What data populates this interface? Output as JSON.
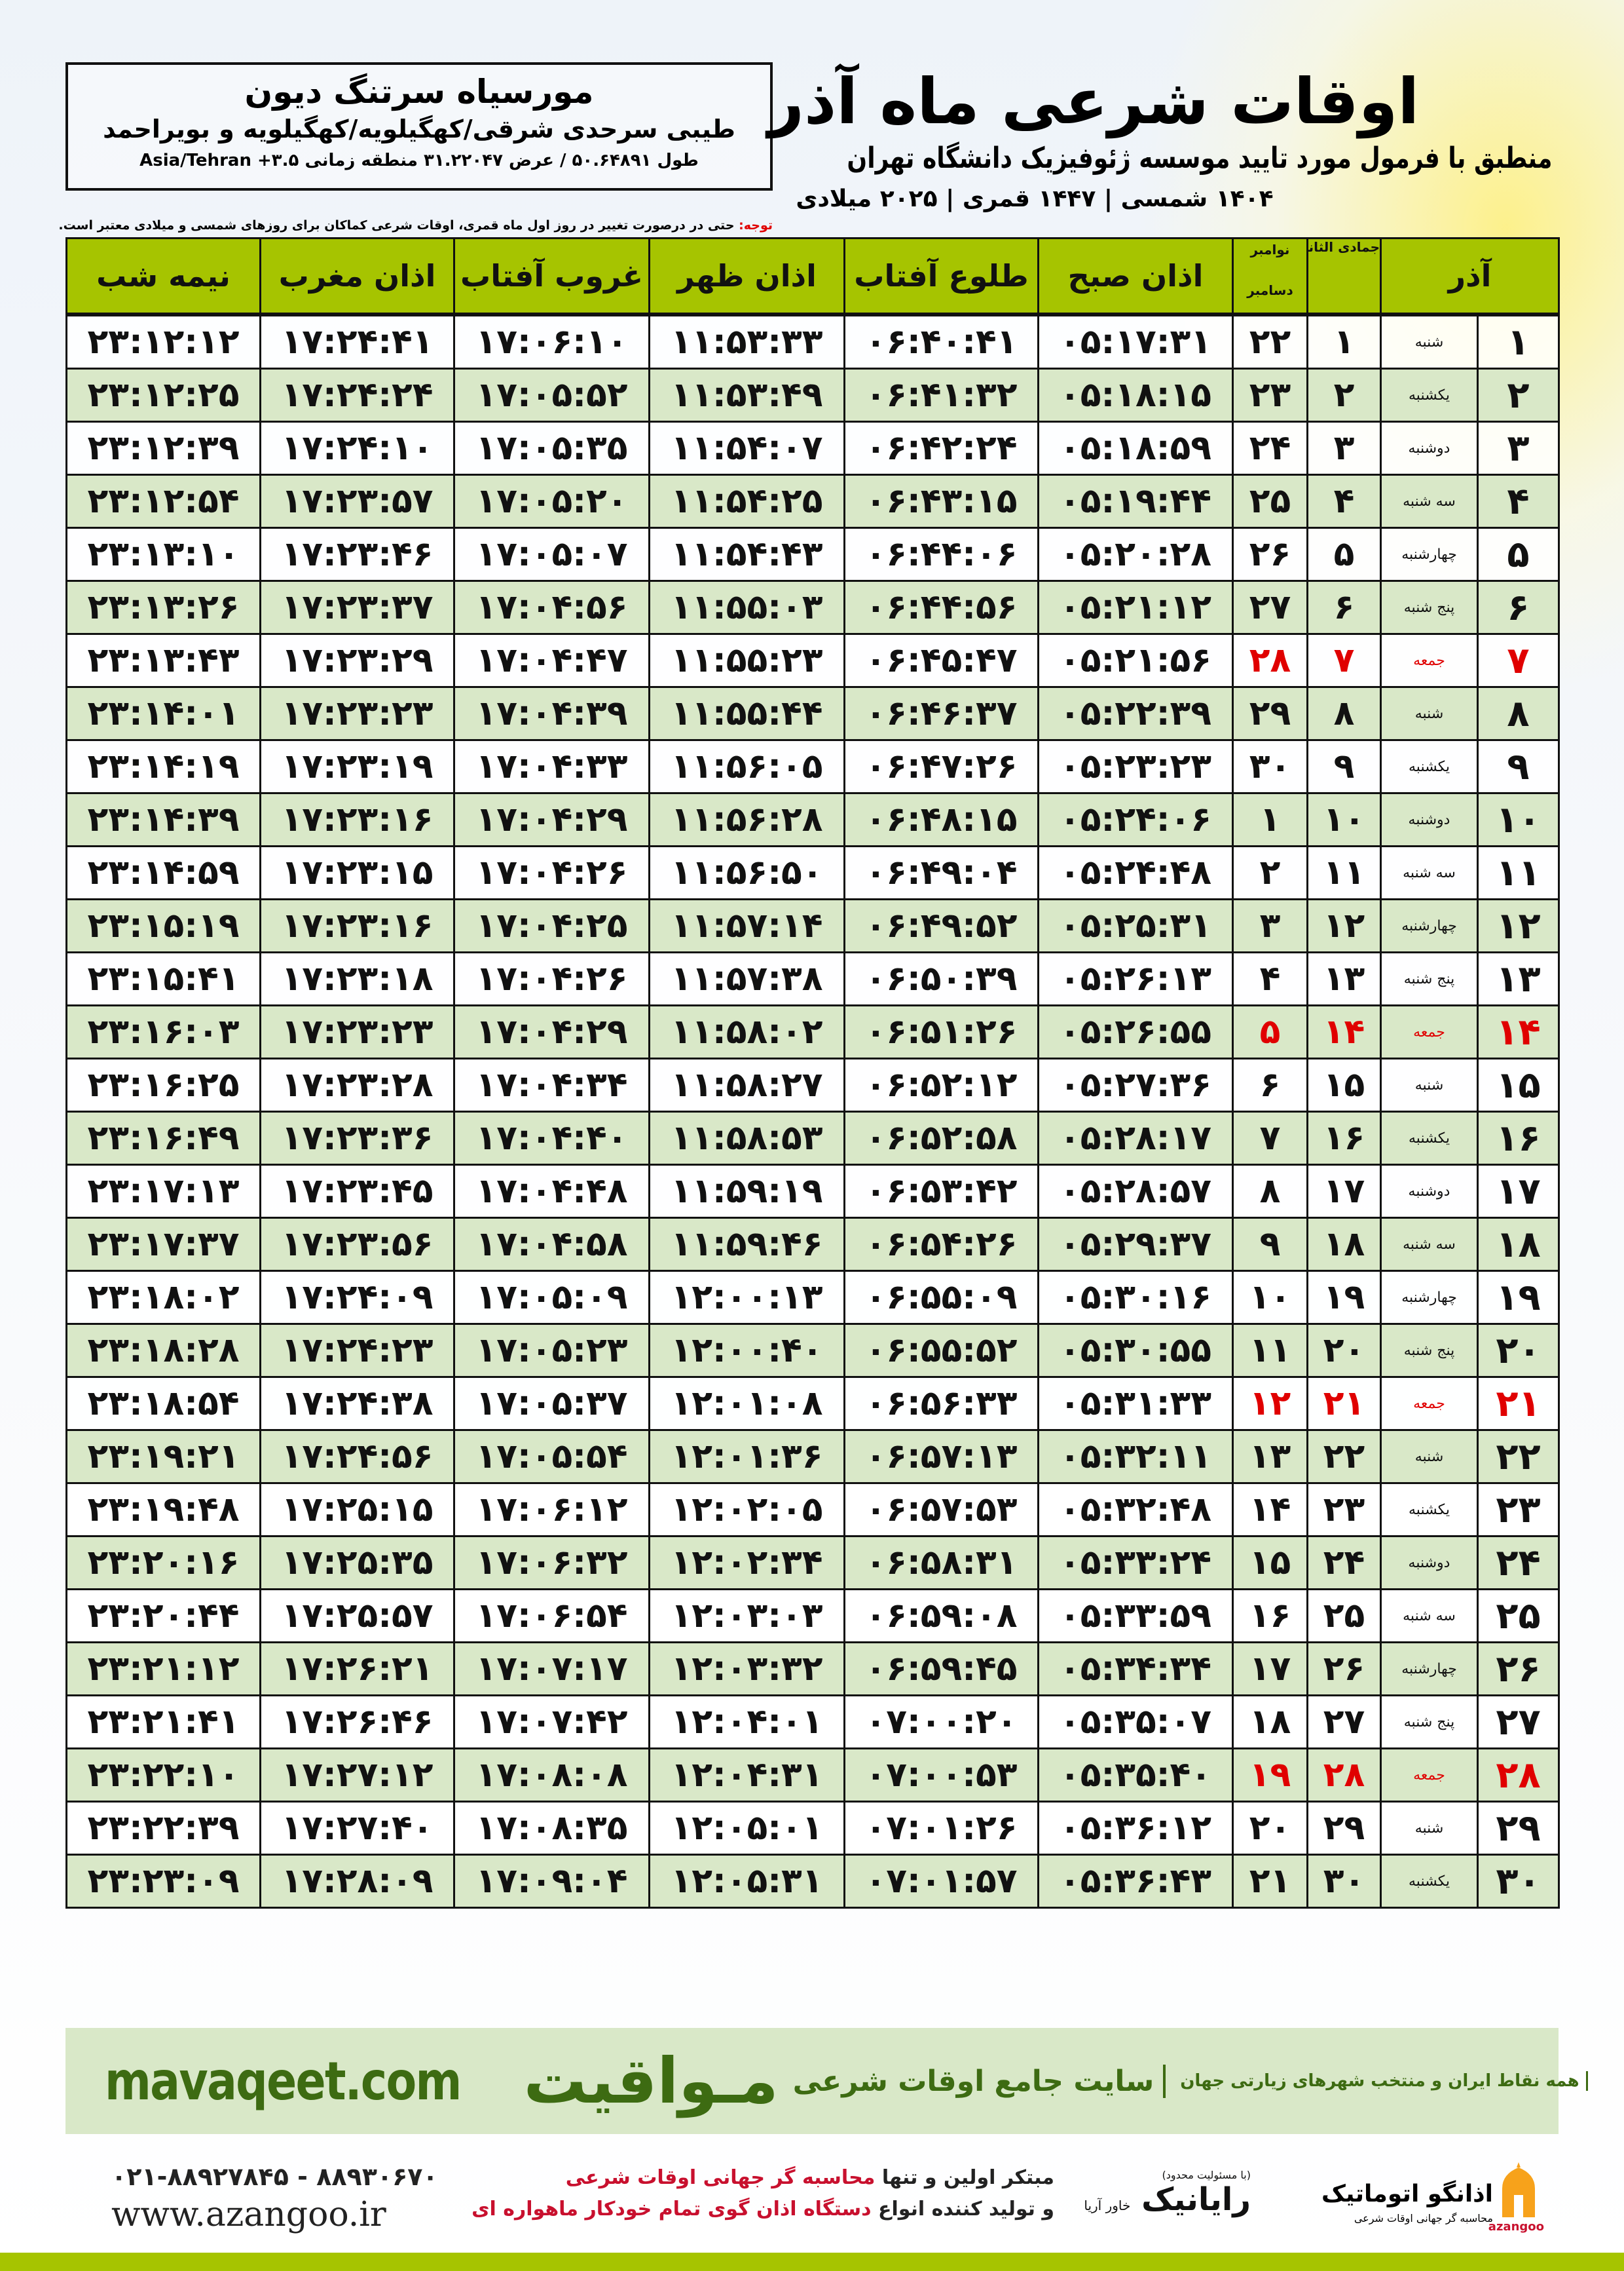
{
  "header": {
    "title": "اوقات شرعی ماه آذر",
    "subtitle": "منطبق با فرمول مورد تایید موسسه ژئوفیزیک دانشگاه تهران",
    "dateline": "۱۴۰۴ شمسی | ۱۴۴۷ قمری | ۲۰۲۵ میلادی"
  },
  "location": {
    "name": "مورسیاه سرتنگ دیون",
    "region": "طیبی سرحدی شرقی/کهگیلویه/کهگیلویه و بویراحمد",
    "coords": "طول ۵۰.۶۴۸۹۱ / عرض ۳۱.۲۲۰۴۷ منطقه زمانی Asia/Tehran +۳.۵"
  },
  "note": {
    "label": "توجه:",
    "text": " حتی در درصورت تغییر در روز اول ماه قمری، اوقات شرعی کماکان برای روزهای شمسی و میلادی معتبر است."
  },
  "table": {
    "headers": {
      "day": "آذر",
      "hijri": "جمادی الثانی",
      "greg_top": "نوامبر",
      "greg_bottom": "دسامبر",
      "fajr": "اذان صبح",
      "sunrise": "طلوع آفتاب",
      "dhuhr": "اذان ظهر",
      "sunset": "غروب آفتاب",
      "maghrib": "اذان مغرب",
      "midnight": "نیمه شب"
    },
    "holiday_color": "#e00000",
    "header_color": "#a6c400",
    "alt_row_color": "#d9e8c8",
    "rows": [
      {
        "day": "۱",
        "weekday": "شنبه",
        "hijri": "۱",
        "greg": "۲۲",
        "fajr": "۰۵:۱۷:۳۱",
        "sunrise": "۰۶:۴۰:۴۱",
        "dhuhr": "۱۱:۵۳:۳۳",
        "sunset": "۱۷:۰۶:۱۰",
        "maghrib": "۱۷:۲۴:۴۱",
        "midnight": "۲۳:۱۲:۱۲",
        "holiday": false
      },
      {
        "day": "۲",
        "weekday": "یکشنبه",
        "hijri": "۲",
        "greg": "۲۳",
        "fajr": "۰۵:۱۸:۱۵",
        "sunrise": "۰۶:۴۱:۳۲",
        "dhuhr": "۱۱:۵۳:۴۹",
        "sunset": "۱۷:۰۵:۵۲",
        "maghrib": "۱۷:۲۴:۲۴",
        "midnight": "۲۳:۱۲:۲۵",
        "holiday": false
      },
      {
        "day": "۳",
        "weekday": "دوشنبه",
        "hijri": "۳",
        "greg": "۲۴",
        "fajr": "۰۵:۱۸:۵۹",
        "sunrise": "۰۶:۴۲:۲۴",
        "dhuhr": "۱۱:۵۴:۰۷",
        "sunset": "۱۷:۰۵:۳۵",
        "maghrib": "۱۷:۲۴:۱۰",
        "midnight": "۲۳:۱۲:۳۹",
        "holiday": false
      },
      {
        "day": "۴",
        "weekday": "سه شنبه",
        "hijri": "۴",
        "greg": "۲۵",
        "fajr": "۰۵:۱۹:۴۴",
        "sunrise": "۰۶:۴۳:۱۵",
        "dhuhr": "۱۱:۵۴:۲۵",
        "sunset": "۱۷:۰۵:۲۰",
        "maghrib": "۱۷:۲۳:۵۷",
        "midnight": "۲۳:۱۲:۵۴",
        "holiday": false
      },
      {
        "day": "۵",
        "weekday": "چهارشنبه",
        "hijri": "۵",
        "greg": "۲۶",
        "fajr": "۰۵:۲۰:۲۸",
        "sunrise": "۰۶:۴۴:۰۶",
        "dhuhr": "۱۱:۵۴:۴۳",
        "sunset": "۱۷:۰۵:۰۷",
        "maghrib": "۱۷:۲۳:۴۶",
        "midnight": "۲۳:۱۳:۱۰",
        "holiday": false
      },
      {
        "day": "۶",
        "weekday": "پنج شنبه",
        "hijri": "۶",
        "greg": "۲۷",
        "fajr": "۰۵:۲۱:۱۲",
        "sunrise": "۰۶:۴۴:۵۶",
        "dhuhr": "۱۱:۵۵:۰۳",
        "sunset": "۱۷:۰۴:۵۶",
        "maghrib": "۱۷:۲۳:۳۷",
        "midnight": "۲۳:۱۳:۲۶",
        "holiday": false
      },
      {
        "day": "۷",
        "weekday": "جمعه",
        "hijri": "۷",
        "greg": "۲۸",
        "fajr": "۰۵:۲۱:۵۶",
        "sunrise": "۰۶:۴۵:۴۷",
        "dhuhr": "۱۱:۵۵:۲۳",
        "sunset": "۱۷:۰۴:۴۷",
        "maghrib": "۱۷:۲۳:۲۹",
        "midnight": "۲۳:۱۳:۴۳",
        "holiday": true
      },
      {
        "day": "۸",
        "weekday": "شنبه",
        "hijri": "۸",
        "greg": "۲۹",
        "fajr": "۰۵:۲۲:۳۹",
        "sunrise": "۰۶:۴۶:۳۷",
        "dhuhr": "۱۱:۵۵:۴۴",
        "sunset": "۱۷:۰۴:۳۹",
        "maghrib": "۱۷:۲۳:۲۳",
        "midnight": "۲۳:۱۴:۰۱",
        "holiday": false
      },
      {
        "day": "۹",
        "weekday": "یکشنبه",
        "hijri": "۹",
        "greg": "۳۰",
        "fajr": "۰۵:۲۳:۲۳",
        "sunrise": "۰۶:۴۷:۲۶",
        "dhuhr": "۱۱:۵۶:۰۵",
        "sunset": "۱۷:۰۴:۳۳",
        "maghrib": "۱۷:۲۳:۱۹",
        "midnight": "۲۳:۱۴:۱۹",
        "holiday": false
      },
      {
        "day": "۱۰",
        "weekday": "دوشنبه",
        "hijri": "۱۰",
        "greg": "۱",
        "fajr": "۰۵:۲۴:۰۶",
        "sunrise": "۰۶:۴۸:۱۵",
        "dhuhr": "۱۱:۵۶:۲۸",
        "sunset": "۱۷:۰۴:۲۹",
        "maghrib": "۱۷:۲۳:۱۶",
        "midnight": "۲۳:۱۴:۳۹",
        "holiday": false
      },
      {
        "day": "۱۱",
        "weekday": "سه شنبه",
        "hijri": "۱۱",
        "greg": "۲",
        "fajr": "۰۵:۲۴:۴۸",
        "sunrise": "۰۶:۴۹:۰۴",
        "dhuhr": "۱۱:۵۶:۵۰",
        "sunset": "۱۷:۰۴:۲۶",
        "maghrib": "۱۷:۲۳:۱۵",
        "midnight": "۲۳:۱۴:۵۹",
        "holiday": false
      },
      {
        "day": "۱۲",
        "weekday": "چهارشنبه",
        "hijri": "۱۲",
        "greg": "۳",
        "fajr": "۰۵:۲۵:۳۱",
        "sunrise": "۰۶:۴۹:۵۲",
        "dhuhr": "۱۱:۵۷:۱۴",
        "sunset": "۱۷:۰۴:۲۵",
        "maghrib": "۱۷:۲۳:۱۶",
        "midnight": "۲۳:۱۵:۱۹",
        "holiday": false
      },
      {
        "day": "۱۳",
        "weekday": "پنج شنبه",
        "hijri": "۱۳",
        "greg": "۴",
        "fajr": "۰۵:۲۶:۱۳",
        "sunrise": "۰۶:۵۰:۳۹",
        "dhuhr": "۱۱:۵۷:۳۸",
        "sunset": "۱۷:۰۴:۲۶",
        "maghrib": "۱۷:۲۳:۱۸",
        "midnight": "۲۳:۱۵:۴۱",
        "holiday": false
      },
      {
        "day": "۱۴",
        "weekday": "جمعه",
        "hijri": "۱۴",
        "greg": "۵",
        "fajr": "۰۵:۲۶:۵۵",
        "sunrise": "۰۶:۵۱:۲۶",
        "dhuhr": "۱۱:۵۸:۰۲",
        "sunset": "۱۷:۰۴:۲۹",
        "maghrib": "۱۷:۲۳:۲۳",
        "midnight": "۲۳:۱۶:۰۳",
        "holiday": true
      },
      {
        "day": "۱۵",
        "weekday": "شنبه",
        "hijri": "۱۵",
        "greg": "۶",
        "fajr": "۰۵:۲۷:۳۶",
        "sunrise": "۰۶:۵۲:۱۲",
        "dhuhr": "۱۱:۵۸:۲۷",
        "sunset": "۱۷:۰۴:۳۴",
        "maghrib": "۱۷:۲۳:۲۸",
        "midnight": "۲۳:۱۶:۲۵",
        "holiday": false
      },
      {
        "day": "۱۶",
        "weekday": "یکشنبه",
        "hijri": "۱۶",
        "greg": "۷",
        "fajr": "۰۵:۲۸:۱۷",
        "sunrise": "۰۶:۵۲:۵۸",
        "dhuhr": "۱۱:۵۸:۵۳",
        "sunset": "۱۷:۰۴:۴۰",
        "maghrib": "۱۷:۲۳:۳۶",
        "midnight": "۲۳:۱۶:۴۹",
        "holiday": false
      },
      {
        "day": "۱۷",
        "weekday": "دوشنبه",
        "hijri": "۱۷",
        "greg": "۸",
        "fajr": "۰۵:۲۸:۵۷",
        "sunrise": "۰۶:۵۳:۴۲",
        "dhuhr": "۱۱:۵۹:۱۹",
        "sunset": "۱۷:۰۴:۴۸",
        "maghrib": "۱۷:۲۳:۴۵",
        "midnight": "۲۳:۱۷:۱۳",
        "holiday": false
      },
      {
        "day": "۱۸",
        "weekday": "سه شنبه",
        "hijri": "۱۸",
        "greg": "۹",
        "fajr": "۰۵:۲۹:۳۷",
        "sunrise": "۰۶:۵۴:۲۶",
        "dhuhr": "۱۱:۵۹:۴۶",
        "sunset": "۱۷:۰۴:۵۸",
        "maghrib": "۱۷:۲۳:۵۶",
        "midnight": "۲۳:۱۷:۳۷",
        "holiday": false
      },
      {
        "day": "۱۹",
        "weekday": "چهارشنبه",
        "hijri": "۱۹",
        "greg": "۱۰",
        "fajr": "۰۵:۳۰:۱۶",
        "sunrise": "۰۶:۵۵:۰۹",
        "dhuhr": "۱۲:۰۰:۱۳",
        "sunset": "۱۷:۰۵:۰۹",
        "maghrib": "۱۷:۲۴:۰۹",
        "midnight": "۲۳:۱۸:۰۲",
        "holiday": false
      },
      {
        "day": "۲۰",
        "weekday": "پنج شنبه",
        "hijri": "۲۰",
        "greg": "۱۱",
        "fajr": "۰۵:۳۰:۵۵",
        "sunrise": "۰۶:۵۵:۵۲",
        "dhuhr": "۱۲:۰۰:۴۰",
        "sunset": "۱۷:۰۵:۲۳",
        "maghrib": "۱۷:۲۴:۲۳",
        "midnight": "۲۳:۱۸:۲۸",
        "holiday": false
      },
      {
        "day": "۲۱",
        "weekday": "جمعه",
        "hijri": "۲۱",
        "greg": "۱۲",
        "fajr": "۰۵:۳۱:۳۳",
        "sunrise": "۰۶:۵۶:۳۳",
        "dhuhr": "۱۲:۰۱:۰۸",
        "sunset": "۱۷:۰۵:۳۷",
        "maghrib": "۱۷:۲۴:۳۸",
        "midnight": "۲۳:۱۸:۵۴",
        "holiday": true
      },
      {
        "day": "۲۲",
        "weekday": "شنبه",
        "hijri": "۲۲",
        "greg": "۱۳",
        "fajr": "۰۵:۳۲:۱۱",
        "sunrise": "۰۶:۵۷:۱۳",
        "dhuhr": "۱۲:۰۱:۳۶",
        "sunset": "۱۷:۰۵:۵۴",
        "maghrib": "۱۷:۲۴:۵۶",
        "midnight": "۲۳:۱۹:۲۱",
        "holiday": false
      },
      {
        "day": "۲۳",
        "weekday": "یکشنبه",
        "hijri": "۲۳",
        "greg": "۱۴",
        "fajr": "۰۵:۳۲:۴۸",
        "sunrise": "۰۶:۵۷:۵۳",
        "dhuhr": "۱۲:۰۲:۰۵",
        "sunset": "۱۷:۰۶:۱۲",
        "maghrib": "۱۷:۲۵:۱۵",
        "midnight": "۲۳:۱۹:۴۸",
        "holiday": false
      },
      {
        "day": "۲۴",
        "weekday": "دوشنبه",
        "hijri": "۲۴",
        "greg": "۱۵",
        "fajr": "۰۵:۳۳:۲۴",
        "sunrise": "۰۶:۵۸:۳۱",
        "dhuhr": "۱۲:۰۲:۳۴",
        "sunset": "۱۷:۰۶:۳۲",
        "maghrib": "۱۷:۲۵:۳۵",
        "midnight": "۲۳:۲۰:۱۶",
        "holiday": false
      },
      {
        "day": "۲۵",
        "weekday": "سه شنبه",
        "hijri": "۲۵",
        "greg": "۱۶",
        "fajr": "۰۵:۳۳:۵۹",
        "sunrise": "۰۶:۵۹:۰۸",
        "dhuhr": "۱۲:۰۳:۰۳",
        "sunset": "۱۷:۰۶:۵۴",
        "maghrib": "۱۷:۲۵:۵۷",
        "midnight": "۲۳:۲۰:۴۴",
        "holiday": false
      },
      {
        "day": "۲۶",
        "weekday": "چهارشنبه",
        "hijri": "۲۶",
        "greg": "۱۷",
        "fajr": "۰۵:۳۴:۳۴",
        "sunrise": "۰۶:۵۹:۴۵",
        "dhuhr": "۱۲:۰۳:۳۲",
        "sunset": "۱۷:۰۷:۱۷",
        "maghrib": "۱۷:۲۶:۲۱",
        "midnight": "۲۳:۲۱:۱۲",
        "holiday": false
      },
      {
        "day": "۲۷",
        "weekday": "پنج شنبه",
        "hijri": "۲۷",
        "greg": "۱۸",
        "fajr": "۰۵:۳۵:۰۷",
        "sunrise": "۰۷:۰۰:۲۰",
        "dhuhr": "۱۲:۰۴:۰۱",
        "sunset": "۱۷:۰۷:۴۲",
        "maghrib": "۱۷:۲۶:۴۶",
        "midnight": "۲۳:۲۱:۴۱",
        "holiday": false
      },
      {
        "day": "۲۸",
        "weekday": "جمعه",
        "hijri": "۲۸",
        "greg": "۱۹",
        "fajr": "۰۵:۳۵:۴۰",
        "sunrise": "۰۷:۰۰:۵۳",
        "dhuhr": "۱۲:۰۴:۳۱",
        "sunset": "۱۷:۰۸:۰۸",
        "maghrib": "۱۷:۲۷:۱۲",
        "midnight": "۲۳:۲۲:۱۰",
        "holiday": true
      },
      {
        "day": "۲۹",
        "weekday": "شنبه",
        "hijri": "۲۹",
        "greg": "۲۰",
        "fajr": "۰۵:۳۶:۱۲",
        "sunrise": "۰۷:۰۱:۲۶",
        "dhuhr": "۱۲:۰۵:۰۱",
        "sunset": "۱۷:۰۸:۳۵",
        "maghrib": "۱۷:۲۷:۴۰",
        "midnight": "۲۳:۲۲:۳۹",
        "holiday": false
      },
      {
        "day": "۳۰",
        "weekday": "یکشنبه",
        "hijri": "۳۰",
        "greg": "۲۱",
        "fajr": "۰۵:۳۶:۴۳",
        "sunrise": "۰۷:۰۱:۵۷",
        "dhuhr": "۱۲:۰۵:۳۱",
        "sunset": "۱۷:۰۹:۰۴",
        "maghrib": "۱۷:۲۸:۰۹",
        "midnight": "۲۳:۲۳:۰۹",
        "holiday": false
      }
    ]
  },
  "ad": {
    "brand": "مـواقیت",
    "slogan": "سایت جامع اوقات شرعی",
    "sub": "همه نقاط ایران و منتخب شهرهای زیارتی جهان",
    "url": "mavaqeet.com",
    "brand_color": "#3d6b12"
  },
  "footer": {
    "phone": "۰۲۱-۸۸۹۲۷۸۴۵ - ۸۸۹۳۰۶۷۰",
    "website": "www.azangoo.ir",
    "promo_line1_a": "مبتکر اولین و تنها ",
    "promo_line1_b": "محاسبه گر جهانی اوقات شرعی",
    "promo_line2_a": "و تولید کننده انواع ",
    "promo_line2_b": "دستگاه اذان گوی تمام خودکار ماهواره ای",
    "rayanik_small": "(با مسئولیت محدود)",
    "rayanik": "رایانیک",
    "rayanik_sub": "خاور آریا",
    "azangoo_name": "اذانگو اتوماتیک",
    "azangoo_sub": "محاسبه گر جهانی اوقات شرعی",
    "azangoo_en": "azangoo"
  }
}
